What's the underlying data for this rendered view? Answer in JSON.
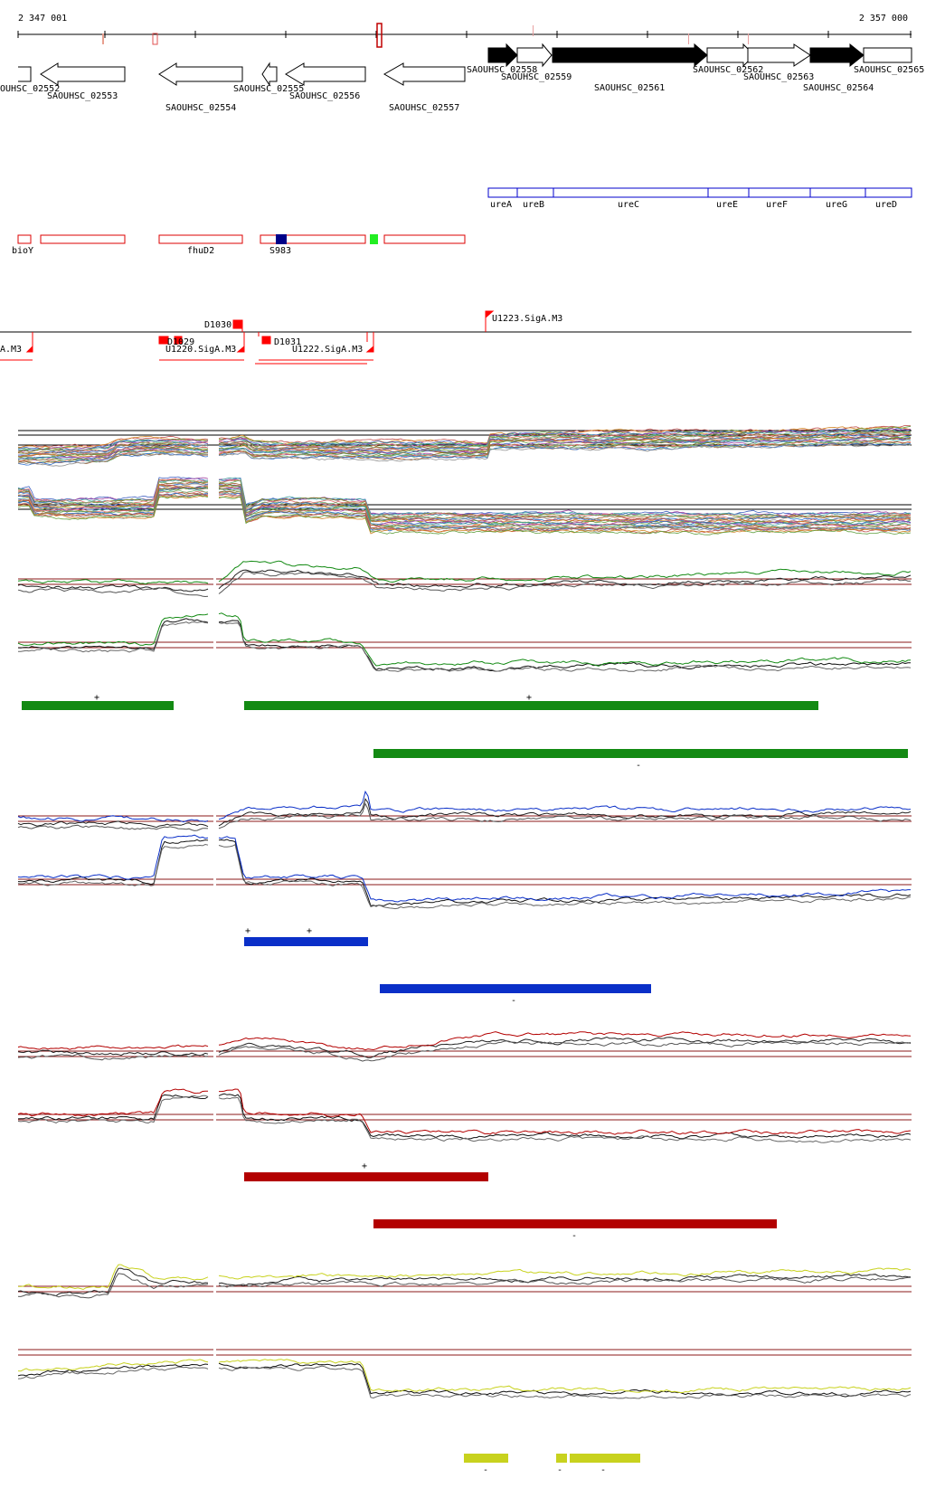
{
  "coords": {
    "start": "2 347 001",
    "end": "2 357 000"
  },
  "genes": [
    {
      "id": "SAOUHSC_02552",
      "label": "OUHSC_02552"
    },
    {
      "id": "SAOUHSC_02553",
      "label": "SAOUHSC_02553"
    },
    {
      "id": "SAOUHSC_02554",
      "label": "SAOUHSC_02554"
    },
    {
      "id": "SAOUHSC_02555",
      "label": "SAOUHSC_02555"
    },
    {
      "id": "SAOUHSC_02556",
      "label": "SAOUHSC_02556"
    },
    {
      "id": "SAOUHSC_02557",
      "label": "SAOUHSC_02557"
    },
    {
      "id": "SAOUHSC_02558",
      "label": "SAOUHSC_02558"
    },
    {
      "id": "SAOUHSC_02559",
      "label": "SAOUHSC_02559"
    },
    {
      "id": "SAOUHSC_02561",
      "label": "SAOUHSC_02561"
    },
    {
      "id": "SAOUHSC_02562",
      "label": "SAOUHSC_02562"
    },
    {
      "id": "SAOUHSC_02563",
      "label": "SAOUHSC_02563"
    },
    {
      "id": "SAOUHSC_02564",
      "label": "SAOUHSC_02564"
    },
    {
      "id": "SAOUHSC_02565",
      "label": "SAOUHSC_02565"
    }
  ],
  "ure_genes": [
    "ureA",
    "ureB",
    "ureC",
    "ureE",
    "ureF",
    "ureG",
    "ureD"
  ],
  "annotations": {
    "bioY": "bioY",
    "fhuD2": "fhuD2",
    "S983": "S983"
  },
  "promoters": {
    "D1030": "D1030",
    "U1223": "U1223.SigA.M3",
    "left_sigA": "A.M3",
    "D1029": "D1029",
    "U1220": "U1220.SigA.M3",
    "D1031": "D1031",
    "U1222": "U1222.SigA.M3"
  },
  "segments": {
    "plus": "+",
    "minus": "-"
  },
  "colors": {
    "gene_outline": "#000000",
    "gene_fill_dark": "#000000",
    "ure_blue": "#0000cc",
    "annotation_red": "#dd0000",
    "green_track": "#138a13",
    "blue_track": "#0a2fc8",
    "red_track": "#b30000",
    "yellow_track": "#c8d21e",
    "threshold_red": "#8b1a1a"
  }
}
